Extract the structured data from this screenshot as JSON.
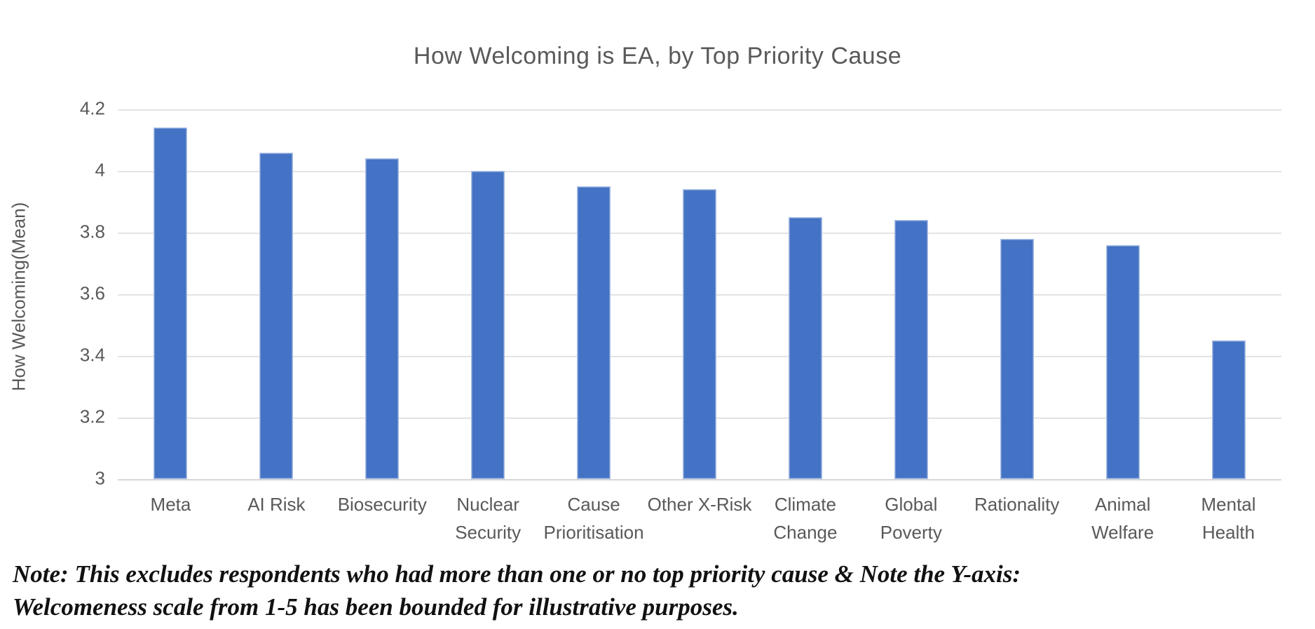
{
  "chart_data": {
    "type": "bar",
    "title": "How Welcoming is EA, by Top Priority Cause",
    "xlabel": "",
    "ylabel": "How Welcoming(Mean)",
    "categories": [
      "Meta",
      "AI Risk",
      "Biosecurity",
      "Nuclear Security",
      "Cause Prioritisation",
      "Other X-Risk",
      "Climate Change",
      "Global Poverty",
      "Rationality",
      "Animal Welfare",
      "Mental Health"
    ],
    "category_labels": [
      [
        "Meta"
      ],
      [
        "AI Risk"
      ],
      [
        "Biosecurity"
      ],
      [
        "Nuclear",
        "Security"
      ],
      [
        "Cause",
        "Prioritisation"
      ],
      [
        "Other X-Risk"
      ],
      [
        "Climate",
        "Change"
      ],
      [
        "Global",
        "Poverty"
      ],
      [
        "Rationality"
      ],
      [
        "Animal",
        "Welfare"
      ],
      [
        "Mental",
        "Health"
      ]
    ],
    "values": [
      4.14,
      4.06,
      4.04,
      4.0,
      3.95,
      3.94,
      3.85,
      3.84,
      3.78,
      3.76,
      3.45
    ],
    "ylim": [
      3,
      4.2
    ],
    "yticks": [
      "4.2",
      "4",
      "3.8",
      "3.6",
      "3.4",
      "3.2",
      "3"
    ],
    "grid": true,
    "legend": false,
    "bar_color": "#4472C4",
    "gridline_color": "#E3E3E3",
    "title_color": "#595959",
    "axis_text_color": "#595959"
  },
  "note": {
    "line1": "Note: This excludes respondents who had more than one or no top priority cause & Note the Y-axis:",
    "line2": "Welcomeness scale from 1-5 has been bounded for illustrative purposes."
  }
}
